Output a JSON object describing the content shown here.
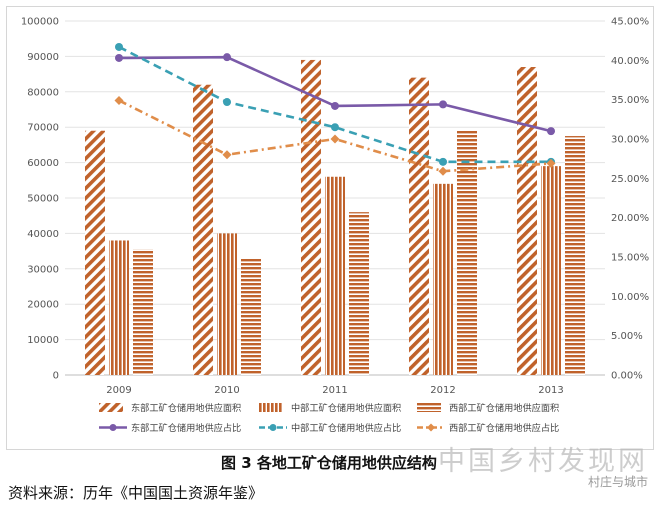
{
  "chart_data": {
    "type": "bar",
    "categories": [
      "2009",
      "2010",
      "2011",
      "2012",
      "2013"
    ],
    "ylim": [
      0,
      100000
    ],
    "y_ticks": [
      "0",
      "10000",
      "20000",
      "30000",
      "40000",
      "50000",
      "60000",
      "70000",
      "80000",
      "90000",
      "100000"
    ],
    "y2lim": [
      0,
      45
    ],
    "y2_ticks": [
      "0.00%",
      "5.00%",
      "10.00%",
      "15.00%",
      "20.00%",
      "25.00%",
      "30.00%",
      "35.00%",
      "40.00%",
      "45.00%"
    ],
    "grid": true,
    "legend_position": "bottom",
    "series": [
      {
        "name": "东部工矿仓储用地供应面积",
        "kind": "bar",
        "pattern": "diagonal",
        "color": "#c0622b",
        "values": [
          69000,
          82000,
          89000,
          84000,
          87000
        ]
      },
      {
        "name": "中部工矿仓储用地供应面积",
        "kind": "bar",
        "pattern": "vertical",
        "color": "#c0622b",
        "values": [
          38000,
          40000,
          56000,
          54000,
          59000
        ]
      },
      {
        "name": "西部工矿仓储用地供应面积",
        "kind": "bar",
        "pattern": "horizontal",
        "color": "#c0622b",
        "values": [
          35500,
          33000,
          46000,
          69000,
          67500
        ]
      },
      {
        "name": "东部工矿仓储用地供应占比",
        "kind": "line",
        "style": "solid",
        "marker": "circle",
        "color": "#7a5aa8",
        "axis": "right",
        "values": [
          40.3,
          40.4,
          34.2,
          34.4,
          31.0
        ]
      },
      {
        "name": "中部工矿仓储用地供应占比",
        "kind": "line",
        "style": "dashed",
        "marker": "circle",
        "color": "#3aa0b4",
        "axis": "right",
        "values": [
          41.7,
          34.7,
          31.5,
          27.1,
          27.1
        ]
      },
      {
        "name": "西部工矿仓储用地供应占比",
        "kind": "line",
        "style": "dashdot",
        "marker": "diamond",
        "color": "#e08d4a",
        "axis": "right",
        "values": [
          34.9,
          28.0,
          30.0,
          25.9,
          26.9
        ]
      }
    ]
  },
  "caption": "图 3 各地工矿仓储用地供应结构",
  "source": "资料来源：历年《中国国土资源年鉴》",
  "watermark": {
    "main": "中国乡村发现网",
    "sub": "村庄与城市"
  }
}
